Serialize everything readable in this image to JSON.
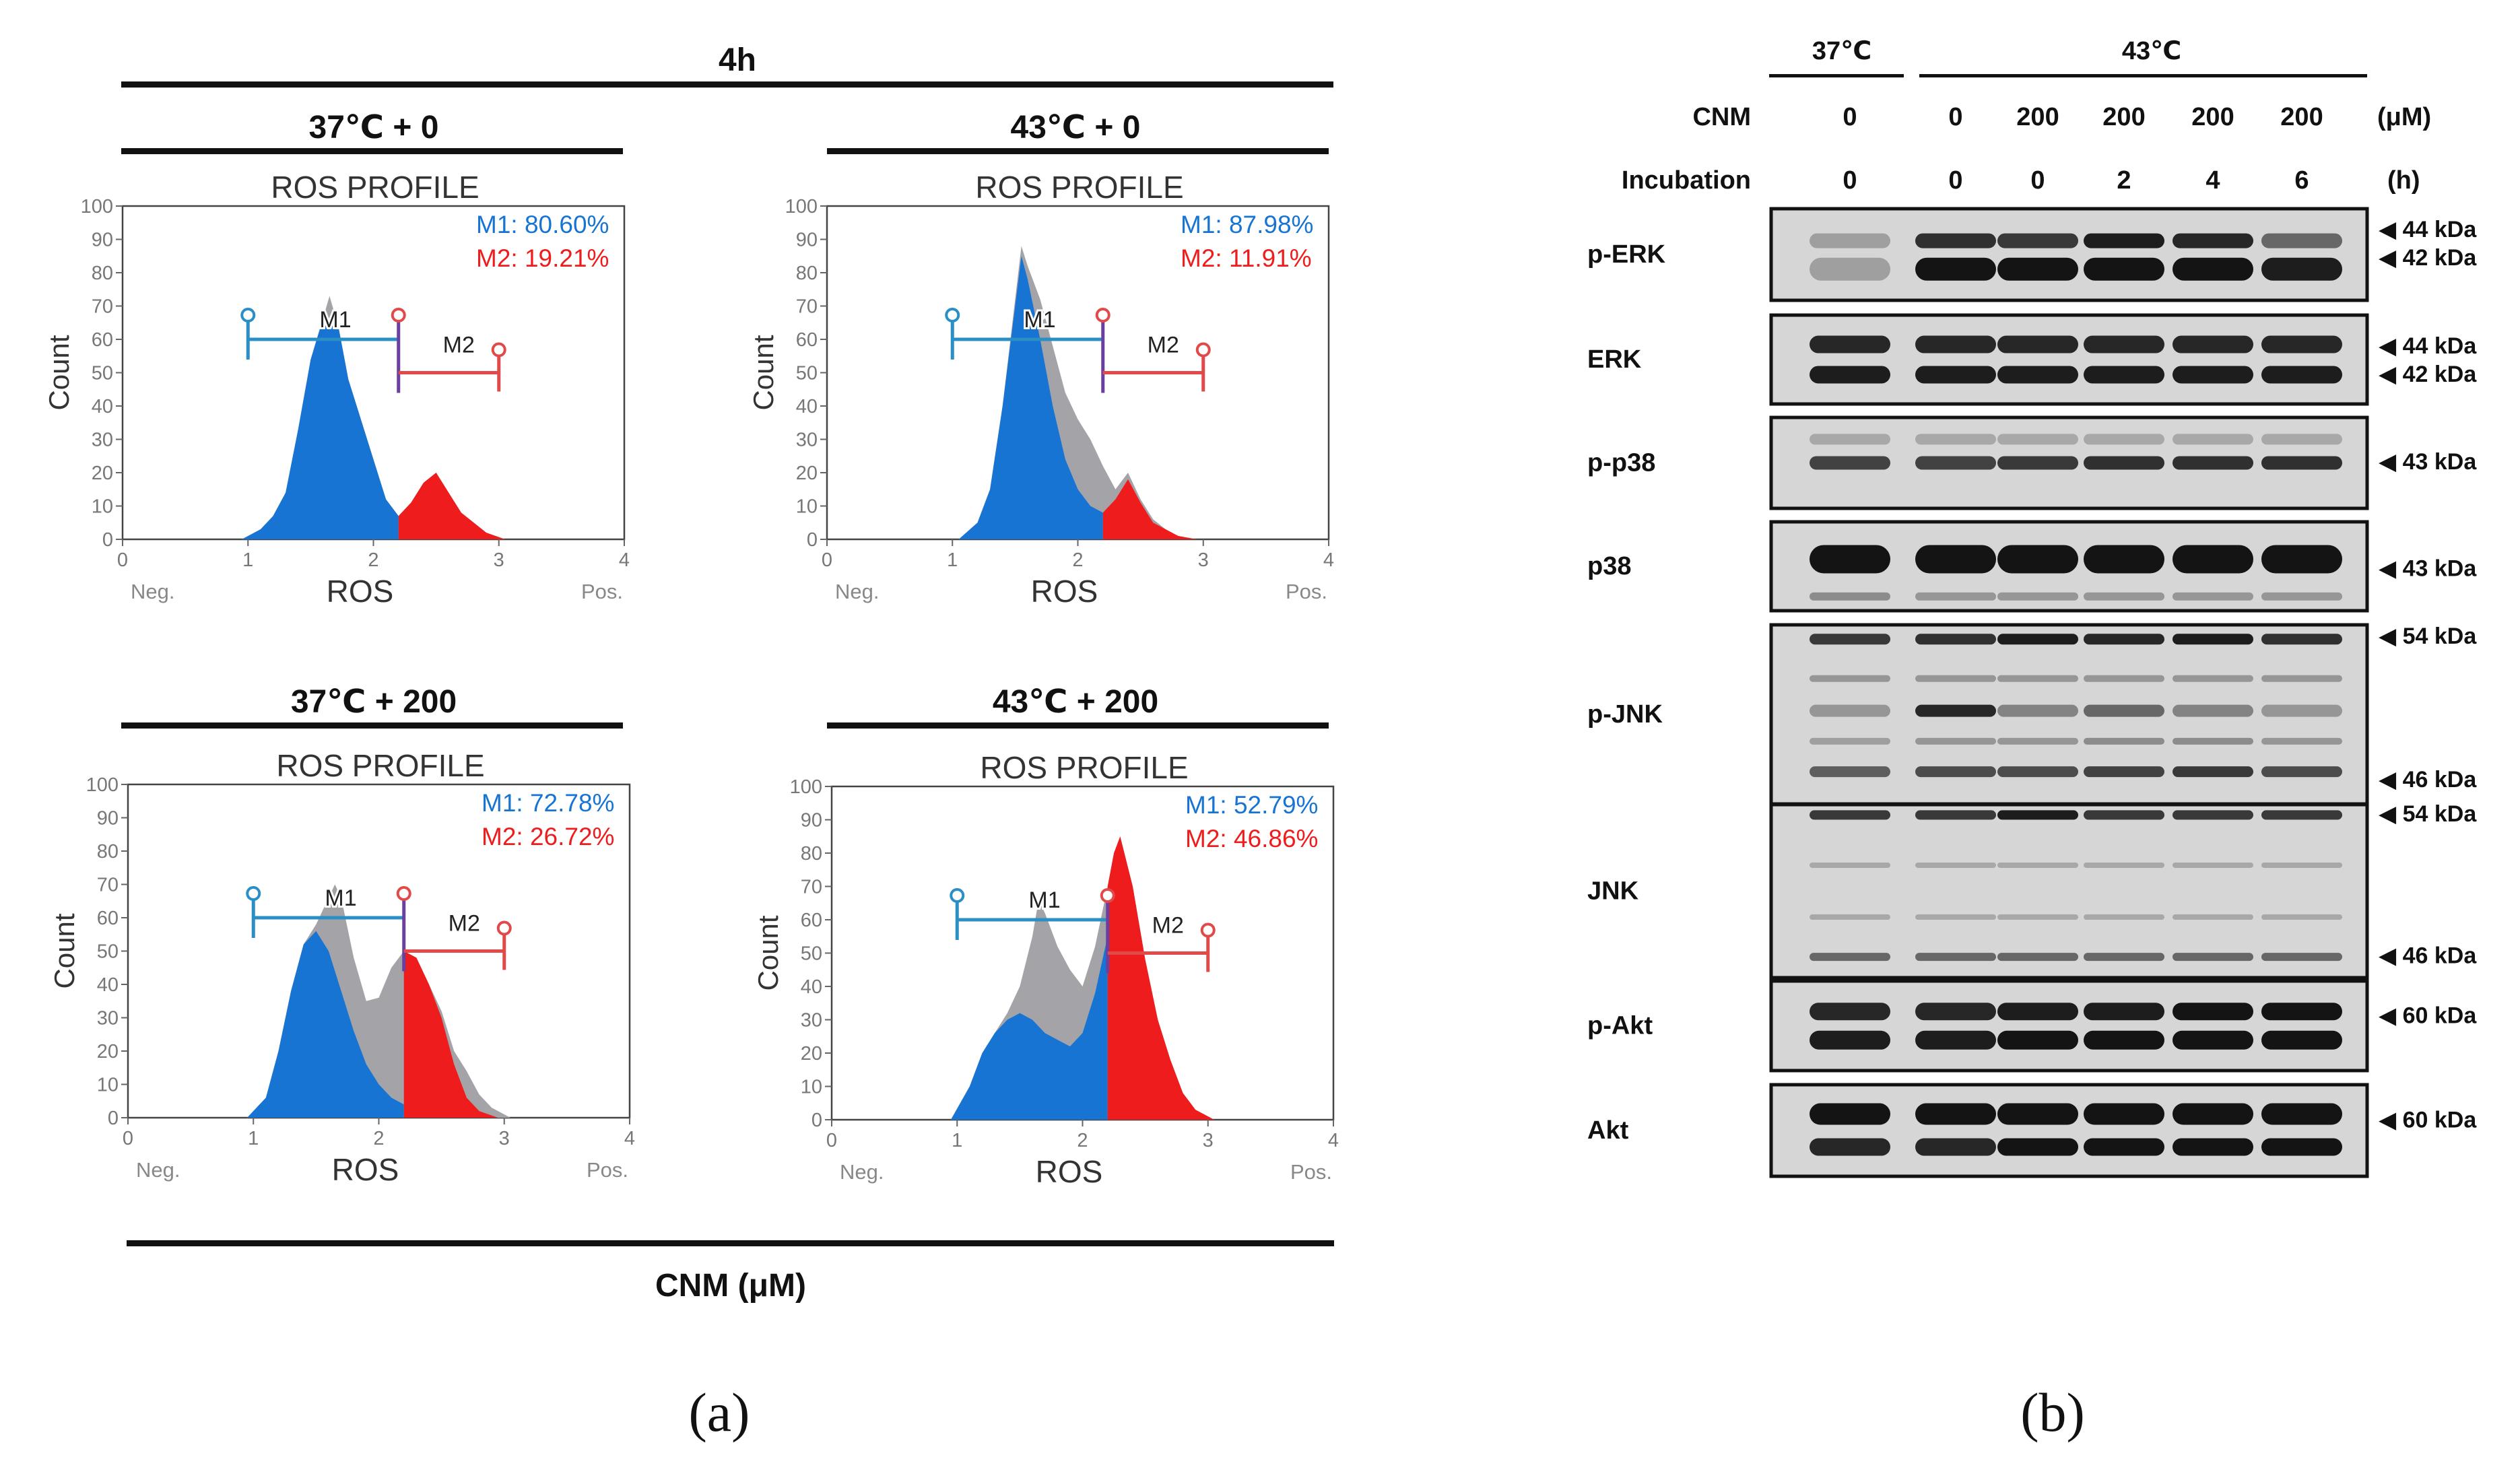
{
  "panel_a": {
    "header": "4h",
    "footer": "CNM (μM)",
    "caption": "(a)",
    "plot_title": "ROS PROFILE",
    "x_axis_label": "ROS",
    "y_axis_label": "Count",
    "neg_label": "Neg.",
    "pos_label": "Pos.",
    "gate1_name": "M1",
    "gate2_name": "M2",
    "x_ticks": [
      "0",
      "1",
      "2",
      "3",
      "4"
    ],
    "y_ticks": [
      "0",
      "10",
      "20",
      "30",
      "40",
      "50",
      "60",
      "70",
      "80",
      "90",
      "100"
    ],
    "colors": {
      "m1": "#1874d2",
      "m2": "#ee1c1c",
      "gray": "#a4a4a8",
      "gate_m1": "#2a8fc4",
      "gate_m2": "#e24a4a"
    }
  },
  "chart_data": [
    {
      "type": "area",
      "title": "ROS PROFILE",
      "condition": "37℃ + 0",
      "xlabel": "ROS",
      "ylabel": "Count",
      "xlim": [
        0,
        4
      ],
      "ylim": [
        0,
        100
      ],
      "m1_label": "M1: 80.60%",
      "m2_label": "M2: 19.21%",
      "m1_gate": [
        1,
        2.2
      ],
      "m2_gate": [
        2.2,
        3
      ],
      "grey": {
        "x": [
          0.95,
          1.1,
          1.2,
          1.3,
          1.4,
          1.5,
          1.58,
          1.65,
          1.72,
          1.8,
          1.9,
          2.0,
          2.1,
          2.2,
          2.3,
          2.4,
          2.5,
          2.6,
          2.7,
          2.8,
          2.9,
          3.05
        ],
        "y": [
          0,
          3,
          7,
          14,
          33,
          54,
          64,
          73,
          64,
          48,
          36,
          24,
          12,
          7,
          11,
          17,
          20,
          14,
          8,
          5,
          2,
          0
        ]
      },
      "m1": {
        "x": [
          0.95,
          1.1,
          1.2,
          1.3,
          1.4,
          1.5,
          1.58,
          1.65,
          1.72,
          1.8,
          1.9,
          2.0,
          2.1,
          2.2
        ],
        "y": [
          0,
          3,
          7,
          14,
          33,
          54,
          64,
          66,
          64,
          48,
          36,
          24,
          12,
          7
        ]
      },
      "m2": {
        "x": [
          2.2,
          2.3,
          2.4,
          2.5,
          2.6,
          2.7,
          2.8,
          2.9,
          3.05
        ],
        "y": [
          7,
          11,
          17,
          20,
          14,
          8,
          5,
          2,
          0
        ]
      }
    },
    {
      "type": "area",
      "title": "ROS PROFILE",
      "condition": "43℃ + 0",
      "xlabel": "ROS",
      "ylabel": "Count",
      "xlim": [
        0,
        4
      ],
      "ylim": [
        0,
        100
      ],
      "m1_label": "M1: 87.98%",
      "m2_label": "M2: 11.91%",
      "m1_gate": [
        1,
        2.2
      ],
      "m2_gate": [
        2.2,
        3
      ],
      "grey": {
        "x": [
          1.05,
          1.2,
          1.3,
          1.4,
          1.5,
          1.55,
          1.6,
          1.7,
          1.8,
          1.9,
          2.0,
          2.1,
          2.2,
          2.3,
          2.4,
          2.5,
          2.6,
          2.7,
          2.8,
          2.95
        ],
        "y": [
          0,
          5,
          15,
          40,
          72,
          88,
          82,
          72,
          58,
          44,
          36,
          30,
          22,
          15,
          20,
          12,
          6,
          3,
          1,
          0
        ]
      },
      "m1": {
        "x": [
          1.05,
          1.2,
          1.3,
          1.4,
          1.5,
          1.55,
          1.6,
          1.7,
          1.8,
          1.9,
          2.0,
          2.1,
          2.2
        ],
        "y": [
          0,
          5,
          15,
          40,
          70,
          85,
          78,
          60,
          40,
          24,
          15,
          10,
          8
        ]
      },
      "m2": {
        "x": [
          2.2,
          2.3,
          2.4,
          2.5,
          2.6,
          2.7,
          2.8,
          2.95
        ],
        "y": [
          8,
          12,
          18,
          11,
          5,
          3,
          1,
          0
        ]
      }
    },
    {
      "type": "area",
      "title": "ROS PROFILE",
      "condition": "37℃ + 200",
      "xlabel": "ROS",
      "ylabel": "Count",
      "xlim": [
        0,
        4
      ],
      "ylim": [
        0,
        100
      ],
      "m1_label": "M1: 72.78%",
      "m2_label": "M2: 26.72%",
      "m1_gate": [
        1,
        2.2
      ],
      "m2_gate": [
        2.2,
        3
      ],
      "grey": {
        "x": [
          0.95,
          1.1,
          1.2,
          1.3,
          1.4,
          1.5,
          1.6,
          1.65,
          1.7,
          1.8,
          1.9,
          2.0,
          2.1,
          2.2,
          2.3,
          2.4,
          2.5,
          2.6,
          2.7,
          2.8,
          2.9,
          3.05
        ],
        "y": [
          0,
          6,
          20,
          38,
          52,
          58,
          66,
          70,
          66,
          48,
          35,
          36,
          45,
          50,
          48,
          40,
          32,
          20,
          14,
          7,
          3,
          0
        ]
      },
      "m1": {
        "x": [
          0.95,
          1.1,
          1.2,
          1.3,
          1.4,
          1.5,
          1.6,
          1.7,
          1.8,
          1.9,
          2.0,
          2.1,
          2.2
        ],
        "y": [
          0,
          6,
          20,
          38,
          52,
          56,
          50,
          38,
          26,
          16,
          10,
          6,
          4
        ]
      },
      "m2": {
        "x": [
          2.2,
          2.3,
          2.4,
          2.5,
          2.6,
          2.7,
          2.8,
          2.95
        ],
        "y": [
          50,
          48,
          40,
          30,
          16,
          6,
          2,
          0
        ]
      }
    },
    {
      "type": "area",
      "title": "ROS PROFILE",
      "condition": "43℃ + 200",
      "xlabel": "ROS",
      "ylabel": "Count",
      "xlim": [
        0,
        4
      ],
      "ylim": [
        0,
        100
      ],
      "m1_label": "M1: 52.79%",
      "m2_label": "M2: 46.86%",
      "m1_gate": [
        1,
        2.2
      ],
      "m2_gate": [
        2.2,
        3
      ],
      "grey": {
        "x": [
          0.95,
          1.1,
          1.2,
          1.3,
          1.4,
          1.5,
          1.6,
          1.65,
          1.7,
          1.8,
          1.9,
          2.0,
          2.1,
          2.2,
          2.25,
          2.3,
          2.4,
          2.5,
          2.6,
          2.7,
          2.8,
          2.9,
          3.05
        ],
        "y": [
          0,
          10,
          20,
          26,
          32,
          40,
          55,
          66,
          62,
          52,
          45,
          40,
          52,
          70,
          80,
          85,
          70,
          48,
          30,
          18,
          8,
          3,
          0
        ]
      },
      "m1": {
        "x": [
          0.95,
          1.1,
          1.2,
          1.3,
          1.4,
          1.5,
          1.6,
          1.7,
          1.8,
          1.9,
          2.0,
          2.1,
          2.2
        ],
        "y": [
          0,
          10,
          20,
          26,
          30,
          32,
          30,
          26,
          24,
          22,
          26,
          38,
          55
        ]
      },
      "m2": {
        "x": [
          2.2,
          2.25,
          2.3,
          2.4,
          2.5,
          2.6,
          2.7,
          2.8,
          2.9,
          3.05
        ],
        "y": [
          70,
          80,
          85,
          70,
          48,
          30,
          18,
          8,
          3,
          0
        ]
      }
    }
  ],
  "panel_b": {
    "caption": "(b)",
    "temp_groups": [
      "37℃",
      "43℃"
    ],
    "cnm_row": {
      "label": "CNM",
      "values": [
        "0",
        "0",
        "200",
        "200",
        "200",
        "200"
      ],
      "unit": "(μM)"
    },
    "incubation_row": {
      "label": "Incubation",
      "values": [
        "0",
        "0",
        "0",
        "2",
        "4",
        "6"
      ],
      "unit": "(h)"
    },
    "blots": [
      {
        "name": "p-ERK",
        "markers": [
          "◀ 44 kDa",
          "◀ 42 kDa"
        ]
      },
      {
        "name": "ERK",
        "markers": [
          "◀ 44 kDa",
          "◀ 42 kDa"
        ]
      },
      {
        "name": "p-p38",
        "markers": [
          "◀ 43 kDa"
        ]
      },
      {
        "name": "p38",
        "markers": [
          "◀ 43 kDa"
        ]
      },
      {
        "name": "p-JNK",
        "markers": [
          "◀ 54 kDa",
          "◀ 46 kDa"
        ]
      },
      {
        "name": "JNK",
        "markers": [
          "◀ 54 kDa",
          "◀ 46 kDa"
        ]
      },
      {
        "name": "p-Akt",
        "markers": [
          "◀ 60 kDa"
        ]
      },
      {
        "name": "Akt",
        "markers": [
          "◀ 60 kDa"
        ]
      }
    ]
  }
}
